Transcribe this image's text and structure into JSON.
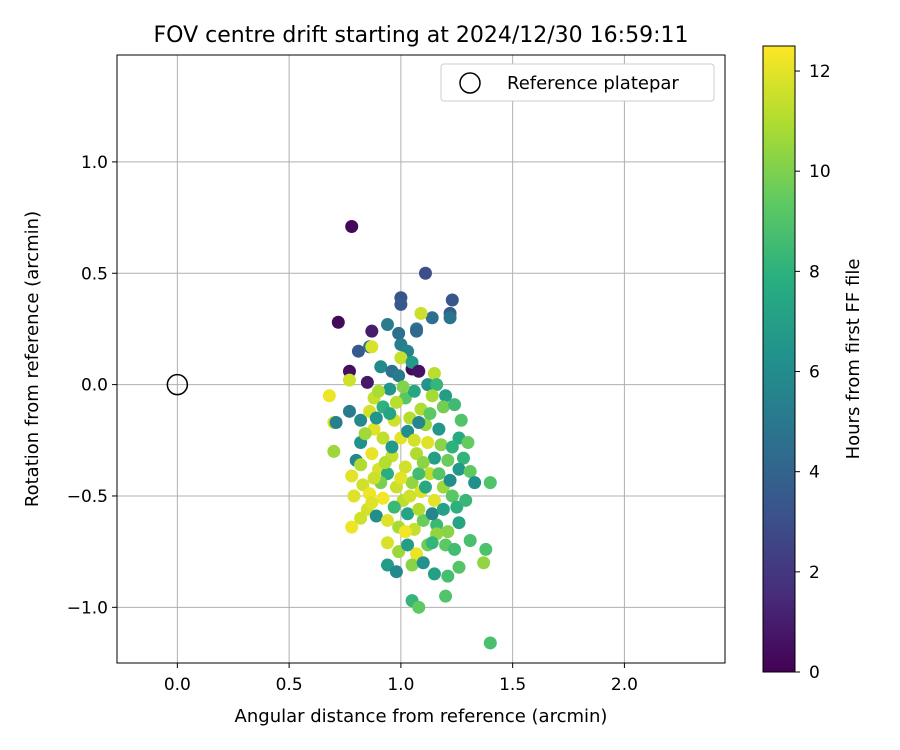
{
  "chart_data": {
    "type": "scatter",
    "title": "FOV centre drift starting at 2024/12/30 16:59:11",
    "xlabel": "Angular distance from reference (arcmin)",
    "ylabel": "Rotation from reference (arcmin)",
    "xlim": [
      -0.27,
      2.45
    ],
    "ylim": [
      -1.25,
      1.48
    ],
    "xticks": [
      0.0,
      0.5,
      1.0,
      1.5,
      2.0
    ],
    "xtick_labels": [
      "0.0",
      "0.5",
      "1.0",
      "1.5",
      "2.0"
    ],
    "yticks": [
      -1.0,
      -0.5,
      0.0,
      0.5,
      1.0
    ],
    "ytick_labels": [
      "−1.0",
      "−0.5",
      "0.0",
      "0.5",
      "1.0"
    ],
    "grid": true,
    "legend": {
      "placement": "upper-right",
      "entries": [
        "Reference platepar"
      ]
    },
    "reference_point": {
      "x": 0.0,
      "y": 0.0,
      "marker": "open-circle",
      "color": "#000000"
    },
    "colorbar": {
      "label": "Hours from first FF file",
      "range": [
        0,
        12.5
      ],
      "ticks": [
        0,
        2,
        4,
        6,
        8,
        10,
        12
      ],
      "tick_labels": [
        "0",
        "2",
        "4",
        "6",
        "8",
        "10",
        "12"
      ],
      "colormap": "viridis"
    },
    "points": [
      {
        "x": 0.78,
        "y": 0.71,
        "h": 0.2
      },
      {
        "x": 0.72,
        "y": 0.28,
        "h": 0.3
      },
      {
        "x": 0.87,
        "y": 0.24,
        "h": 1.0
      },
      {
        "x": 0.77,
        "y": 0.06,
        "h": 0.5
      },
      {
        "x": 0.85,
        "y": 0.01,
        "h": 0.8
      },
      {
        "x": 1.05,
        "y": 0.07,
        "h": 0.4
      },
      {
        "x": 1.11,
        "y": 0.5,
        "h": 3.0
      },
      {
        "x": 1.0,
        "y": 0.39,
        "h": 3.2
      },
      {
        "x": 1.0,
        "y": 0.36,
        "h": 3.5
      },
      {
        "x": 1.23,
        "y": 0.38,
        "h": 3.3
      },
      {
        "x": 1.22,
        "y": 0.32,
        "h": 3.6
      },
      {
        "x": 1.22,
        "y": 0.3,
        "h": 4.8
      },
      {
        "x": 1.14,
        "y": 0.3,
        "h": 4.5
      },
      {
        "x": 1.07,
        "y": 0.25,
        "h": 5.0
      },
      {
        "x": 1.07,
        "y": 0.24,
        "h": 4.2
      },
      {
        "x": 0.94,
        "y": 0.27,
        "h": 5.2
      },
      {
        "x": 0.99,
        "y": 0.23,
        "h": 4.6
      },
      {
        "x": 0.81,
        "y": 0.15,
        "h": 3.5
      },
      {
        "x": 0.86,
        "y": 0.17,
        "h": 4.8
      },
      {
        "x": 1.0,
        "y": 0.18,
        "h": 5.3
      },
      {
        "x": 1.03,
        "y": 0.15,
        "h": 5.6
      },
      {
        "x": 1.09,
        "y": 0.32,
        "h": 11.5
      },
      {
        "x": 0.87,
        "y": 0.17,
        "h": 11.8
      },
      {
        "x": 1.0,
        "y": 0.12,
        "h": 11.4
      },
      {
        "x": 1.05,
        "y": 0.1,
        "h": 6.8
      },
      {
        "x": 1.08,
        "y": 0.06,
        "h": 0.6
      },
      {
        "x": 1.15,
        "y": 0.05,
        "h": 11.2
      },
      {
        "x": 0.91,
        "y": 0.08,
        "h": 5.9
      },
      {
        "x": 0.96,
        "y": 0.06,
        "h": 4.7
      },
      {
        "x": 0.99,
        "y": 0.04,
        "h": 5.1
      },
      {
        "x": 1.12,
        "y": 0.0,
        "h": 6.4
      },
      {
        "x": 1.16,
        "y": 0.0,
        "h": 8.2
      },
      {
        "x": 1.2,
        "y": -0.05,
        "h": 6.9
      },
      {
        "x": 0.77,
        "y": 0.02,
        "h": 11.6
      },
      {
        "x": 0.68,
        "y": -0.05,
        "h": 12.2
      },
      {
        "x": 0.7,
        "y": -0.17,
        "h": 11.8
      },
      {
        "x": 0.71,
        "y": -0.17,
        "h": 5.4
      },
      {
        "x": 0.77,
        "y": -0.12,
        "h": 5.2
      },
      {
        "x": 0.82,
        "y": -0.16,
        "h": 5.8
      },
      {
        "x": 0.7,
        "y": -0.3,
        "h": 10.6
      },
      {
        "x": 0.8,
        "y": -0.34,
        "h": 5.7
      },
      {
        "x": 0.82,
        "y": -0.26,
        "h": 6.3
      },
      {
        "x": 0.88,
        "y": -0.06,
        "h": 11.4
      },
      {
        "x": 0.92,
        "y": -0.1,
        "h": 8.0
      },
      {
        "x": 0.95,
        "y": -0.02,
        "h": 6.5
      },
      {
        "x": 1.02,
        "y": -0.06,
        "h": 9.2
      },
      {
        "x": 1.06,
        "y": -0.03,
        "h": 7.4
      },
      {
        "x": 1.09,
        "y": -0.11,
        "h": 11.0
      },
      {
        "x": 1.11,
        "y": -0.18,
        "h": 10.5
      },
      {
        "x": 1.14,
        "y": -0.05,
        "h": 10.8
      },
      {
        "x": 1.19,
        "y": -0.1,
        "h": 9.8
      },
      {
        "x": 1.24,
        "y": -0.09,
        "h": 8.5
      },
      {
        "x": 1.27,
        "y": -0.16,
        "h": 9.0
      },
      {
        "x": 1.26,
        "y": -0.24,
        "h": 7.6
      },
      {
        "x": 1.3,
        "y": -0.26,
        "h": 9.5
      },
      {
        "x": 1.28,
        "y": -0.33,
        "h": 8.1
      },
      {
        "x": 1.26,
        "y": -0.38,
        "h": 6.6
      },
      {
        "x": 1.31,
        "y": -0.39,
        "h": 9.4
      },
      {
        "x": 1.33,
        "y": -0.44,
        "h": 6.2
      },
      {
        "x": 1.4,
        "y": -0.44,
        "h": 9.0
      },
      {
        "x": 0.86,
        "y": -0.12,
        "h": 11.7
      },
      {
        "x": 0.88,
        "y": -0.2,
        "h": 11.9
      },
      {
        "x": 0.92,
        "y": -0.24,
        "h": 11.3
      },
      {
        "x": 0.97,
        "y": -0.16,
        "h": 11.6
      },
      {
        "x": 1.0,
        "y": -0.24,
        "h": 12.0
      },
      {
        "x": 1.04,
        "y": -0.15,
        "h": 11.1
      },
      {
        "x": 0.87,
        "y": -0.31,
        "h": 12.1
      },
      {
        "x": 0.9,
        "y": -0.38,
        "h": 11.8
      },
      {
        "x": 0.96,
        "y": -0.32,
        "h": 11.4
      },
      {
        "x": 1.02,
        "y": -0.37,
        "h": 11.6
      },
      {
        "x": 1.07,
        "y": -0.31,
        "h": 11.0
      },
      {
        "x": 1.12,
        "y": -0.26,
        "h": 11.9
      },
      {
        "x": 1.15,
        "y": -0.33,
        "h": 7.0
      },
      {
        "x": 1.18,
        "y": -0.27,
        "h": 10.2
      },
      {
        "x": 1.21,
        "y": -0.34,
        "h": 9.6
      },
      {
        "x": 0.78,
        "y": -0.41,
        "h": 12.0
      },
      {
        "x": 0.83,
        "y": -0.45,
        "h": 11.6
      },
      {
        "x": 0.86,
        "y": -0.49,
        "h": 12.2
      },
      {
        "x": 0.79,
        "y": -0.5,
        "h": 11.9
      },
      {
        "x": 0.85,
        "y": -0.56,
        "h": 11.7
      },
      {
        "x": 0.92,
        "y": -0.51,
        "h": 12.3
      },
      {
        "x": 0.98,
        "y": -0.46,
        "h": 11.5
      },
      {
        "x": 1.01,
        "y": -0.52,
        "h": 11.2
      },
      {
        "x": 1.05,
        "y": -0.44,
        "h": 10.4
      },
      {
        "x": 1.09,
        "y": -0.48,
        "h": 11.8
      },
      {
        "x": 1.13,
        "y": -0.4,
        "h": 11.3
      },
      {
        "x": 1.15,
        "y": -0.52,
        "h": 12.0
      },
      {
        "x": 1.19,
        "y": -0.46,
        "h": 10.6
      },
      {
        "x": 1.23,
        "y": -0.5,
        "h": 9.2
      },
      {
        "x": 1.25,
        "y": -0.55,
        "h": 7.9
      },
      {
        "x": 0.78,
        "y": -0.64,
        "h": 12.2
      },
      {
        "x": 0.82,
        "y": -0.6,
        "h": 11.6
      },
      {
        "x": 0.89,
        "y": -0.59,
        "h": 6.1
      },
      {
        "x": 0.94,
        "y": -0.61,
        "h": 11.9
      },
      {
        "x": 0.99,
        "y": -0.64,
        "h": 10.8
      },
      {
        "x": 1.03,
        "y": -0.58,
        "h": 7.2
      },
      {
        "x": 1.06,
        "y": -0.65,
        "h": 11.4
      },
      {
        "x": 1.1,
        "y": -0.61,
        "h": 9.6
      },
      {
        "x": 1.16,
        "y": -0.63,
        "h": 8.4
      },
      {
        "x": 1.21,
        "y": -0.66,
        "h": 10.2
      },
      {
        "x": 1.26,
        "y": -0.62,
        "h": 7.3
      },
      {
        "x": 1.31,
        "y": -0.7,
        "h": 8.8
      },
      {
        "x": 0.94,
        "y": -0.71,
        "h": 11.8
      },
      {
        "x": 0.99,
        "y": -0.75,
        "h": 10.6
      },
      {
        "x": 1.03,
        "y": -0.72,
        "h": 6.9
      },
      {
        "x": 1.07,
        "y": -0.76,
        "h": 12.1
      },
      {
        "x": 1.12,
        "y": -0.72,
        "h": 9.7
      },
      {
        "x": 1.16,
        "y": -0.67,
        "h": 10.4
      },
      {
        "x": 1.2,
        "y": -0.72,
        "h": 9.3
      },
      {
        "x": 1.24,
        "y": -0.74,
        "h": 8.6
      },
      {
        "x": 1.38,
        "y": -0.74,
        "h": 8.9
      },
      {
        "x": 0.94,
        "y": -0.81,
        "h": 6.8
      },
      {
        "x": 0.98,
        "y": -0.84,
        "h": 5.9
      },
      {
        "x": 1.05,
        "y": -0.81,
        "h": 10.2
      },
      {
        "x": 1.1,
        "y": -0.8,
        "h": 6.3
      },
      {
        "x": 1.15,
        "y": -0.85,
        "h": 7.0
      },
      {
        "x": 1.21,
        "y": -0.86,
        "h": 8.7
      },
      {
        "x": 1.26,
        "y": -0.82,
        "h": 9.1
      },
      {
        "x": 1.37,
        "y": -0.8,
        "h": 10.4
      },
      {
        "x": 1.05,
        "y": -0.97,
        "h": 8.2
      },
      {
        "x": 1.08,
        "y": -1.0,
        "h": 9.4
      },
      {
        "x": 1.2,
        "y": -0.95,
        "h": 9.0
      },
      {
        "x": 1.4,
        "y": -1.16,
        "h": 8.8
      },
      {
        "x": 0.94,
        "y": -0.4,
        "h": 7.8
      },
      {
        "x": 0.96,
        "y": -0.28,
        "h": 6.7
      },
      {
        "x": 1.03,
        "y": -0.21,
        "h": 6.2
      },
      {
        "x": 1.08,
        "y": -0.4,
        "h": 8.6
      },
      {
        "x": 1.11,
        "y": -0.46,
        "h": 7.5
      },
      {
        "x": 1.14,
        "y": -0.58,
        "h": 5.6
      },
      {
        "x": 1.19,
        "y": -0.56,
        "h": 7.1
      },
      {
        "x": 1.22,
        "y": -0.43,
        "h": 6.0
      },
      {
        "x": 1.17,
        "y": -0.2,
        "h": 6.6
      },
      {
        "x": 0.9,
        "y": -0.03,
        "h": 10.9
      },
      {
        "x": 0.98,
        "y": -0.08,
        "h": 11.2
      },
      {
        "x": 1.01,
        "y": -0.01,
        "h": 10.1
      },
      {
        "x": 1.13,
        "y": -0.13,
        "h": 9.3
      },
      {
        "x": 0.84,
        "y": -0.22,
        "h": 10.7
      },
      {
        "x": 0.91,
        "y": -0.44,
        "h": 9.9
      },
      {
        "x": 0.97,
        "y": -0.55,
        "h": 8.4
      },
      {
        "x": 1.04,
        "y": -0.5,
        "h": 11.6
      },
      {
        "x": 1.0,
        "y": -0.42,
        "h": 12.0
      },
      {
        "x": 0.93,
        "y": -0.35,
        "h": 11.1
      },
      {
        "x": 1.06,
        "y": -0.25,
        "h": 11.7
      },
      {
        "x": 1.1,
        "y": -0.35,
        "h": 10.3
      },
      {
        "x": 1.17,
        "y": -0.4,
        "h": 9.1
      },
      {
        "x": 1.23,
        "y": -0.28,
        "h": 8.0
      },
      {
        "x": 1.29,
        "y": -0.52,
        "h": 8.3
      },
      {
        "x": 0.89,
        "y": -0.15,
        "h": 6.4
      },
      {
        "x": 0.95,
        "y": -0.13,
        "h": 7.3
      },
      {
        "x": 1.08,
        "y": -0.17,
        "h": 5.7
      },
      {
        "x": 0.82,
        "y": -0.36,
        "h": 11.0
      },
      {
        "x": 0.88,
        "y": -0.42,
        "h": 11.5
      },
      {
        "x": 0.87,
        "y": -0.53,
        "h": 11.9
      },
      {
        "x": 1.02,
        "y": -0.66,
        "h": 12.3
      },
      {
        "x": 1.08,
        "y": -0.56,
        "h": 11.0
      },
      {
        "x": 1.14,
        "y": -0.71,
        "h": 8.2
      }
    ]
  }
}
